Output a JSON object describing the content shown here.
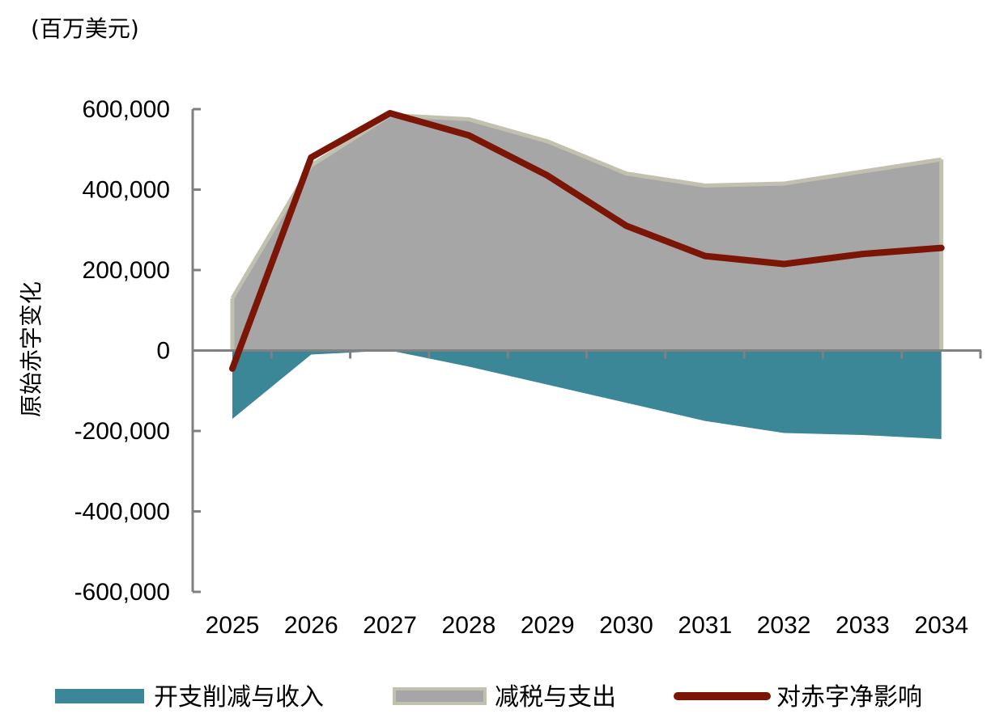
{
  "chart_data": {
    "type": "area",
    "unit_label": "(百万美元)",
    "ylabel": "原始赤字变化",
    "categories": [
      "2025",
      "2026",
      "2027",
      "2028",
      "2029",
      "2030",
      "2031",
      "2032",
      "2033",
      "2034"
    ],
    "ylim": [
      -600000,
      600000
    ],
    "yticks": [
      {
        "value": 600000,
        "label": "600,000"
      },
      {
        "value": 400000,
        "label": "400,000"
      },
      {
        "value": 200000,
        "label": "200,000"
      },
      {
        "value": 0,
        "label": "0"
      },
      {
        "value": -200000,
        "label": "-200,000"
      },
      {
        "value": -400000,
        "label": "-400,000"
      },
      {
        "value": -600000,
        "label": "-600,000"
      }
    ],
    "series": [
      {
        "name": "开支削减与收入",
        "kind": "area",
        "color": "#3b8697",
        "values": [
          -170000,
          -10000,
          0,
          -40000,
          -85000,
          -130000,
          -175000,
          -205000,
          -210000,
          -220000
        ]
      },
      {
        "name": "减税与支出",
        "kind": "area",
        "color": "#a6a6a6",
        "edge_color": "#c2c0ae",
        "values": [
          130000,
          460000,
          585000,
          575000,
          520000,
          440000,
          410000,
          415000,
          445000,
          475000
        ]
      },
      {
        "name": "对赤字净影响",
        "kind": "line",
        "color": "#7b1607",
        "values": [
          -45000,
          480000,
          590000,
          535000,
          435000,
          310000,
          235000,
          215000,
          240000,
          255000
        ]
      }
    ],
    "legend": "bottom"
  }
}
